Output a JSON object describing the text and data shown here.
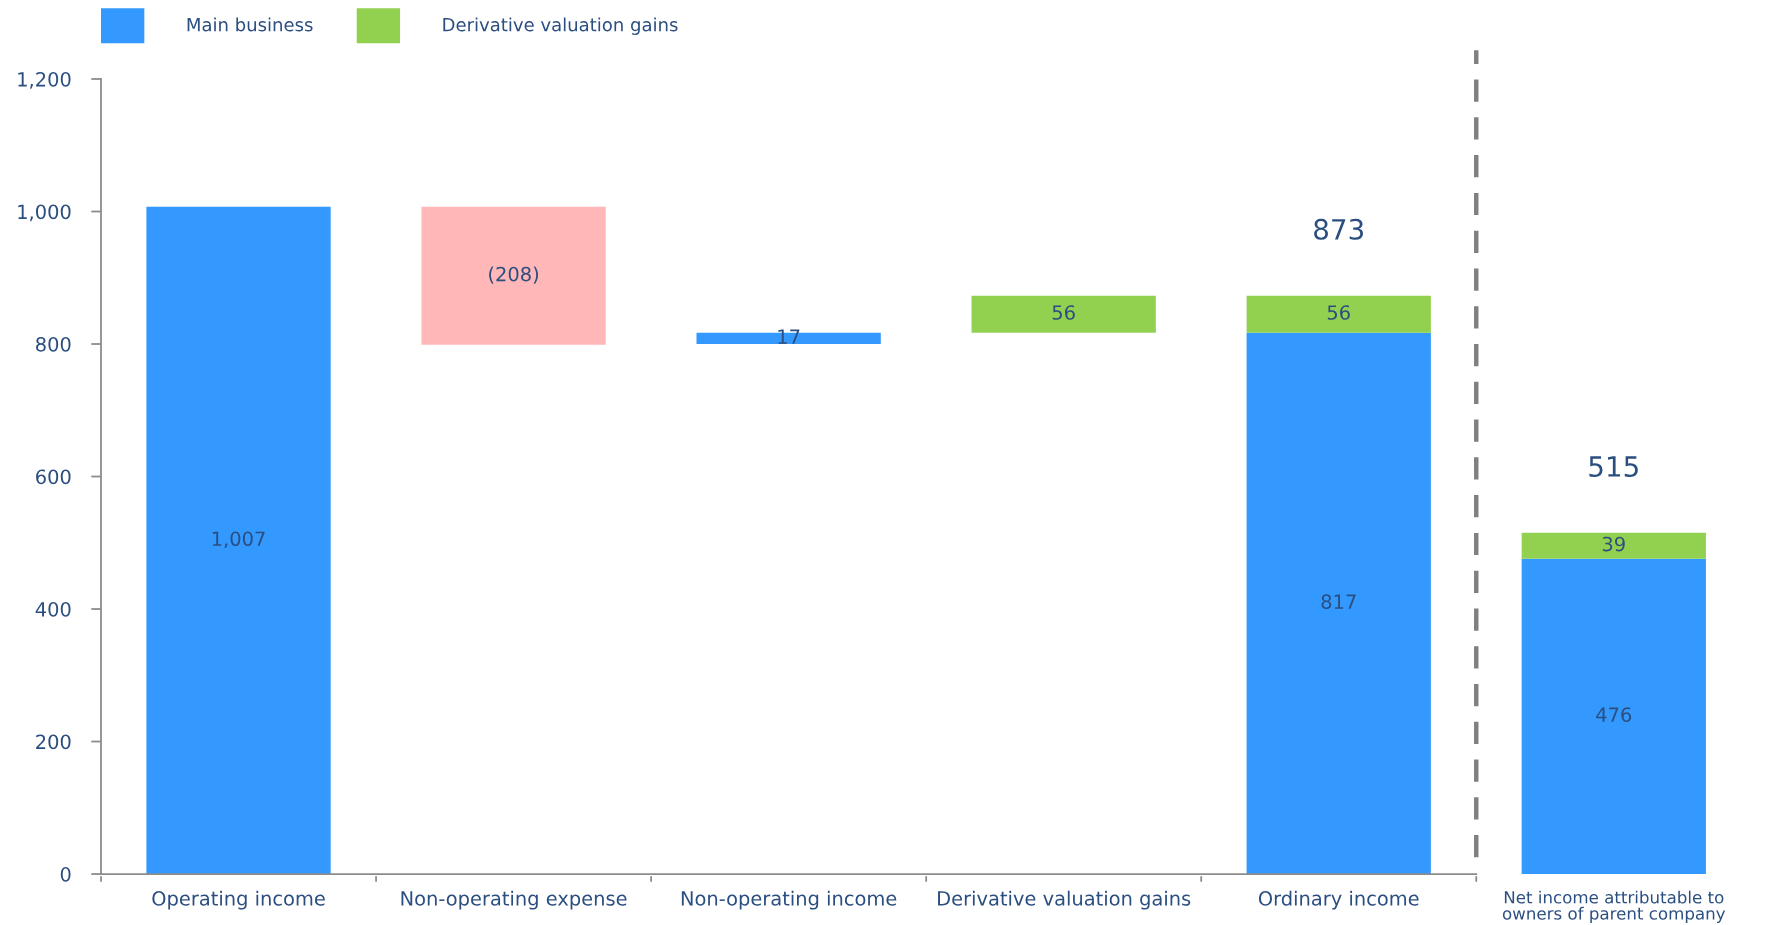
{
  "chart_data": {
    "type": "bar",
    "categories": [
      "Operating income",
      "Non-operating expense",
      "Non-operating income",
      "Derivative valuation gains",
      "Ordinary income",
      "Net income attributable to\nowners of parent company"
    ],
    "series": [
      {
        "name": "Main business",
        "color": "#3399ff",
        "values": [
          1007,
          null,
          17,
          null,
          817,
          476
        ],
        "base": [
          0,
          null,
          800,
          null,
          0,
          0
        ],
        "value_labels": [
          "1,007",
          null,
          "17",
          null,
          "817",
          "476"
        ]
      },
      {
        "color": "#ffb7b7",
        "values": [
          null,
          -208,
          null,
          null,
          null,
          null
        ],
        "base": [
          null,
          1007,
          null,
          null,
          null,
          null
        ],
        "value_labels": [
          null,
          "(208)",
          null,
          null,
          null,
          null
        ]
      },
      {
        "name": "Derivative valuation gains",
        "color": "#92d050",
        "values": [
          null,
          null,
          null,
          56,
          56,
          39
        ],
        "base": [
          null,
          null,
          null,
          817,
          817,
          476
        ],
        "value_labels": [
          null,
          null,
          null,
          "56",
          "56",
          "39"
        ]
      }
    ],
    "totals": [
      null,
      null,
      null,
      null,
      "873",
      "515"
    ],
    "ylim": [
      0,
      1200
    ],
    "yticks": [
      0,
      200,
      400,
      600,
      800,
      {
        "value": 1000,
        "label": "1,000"
      },
      {
        "value": 1200,
        "label": "1,200"
      }
    ],
    "legend": "top left"
  }
}
